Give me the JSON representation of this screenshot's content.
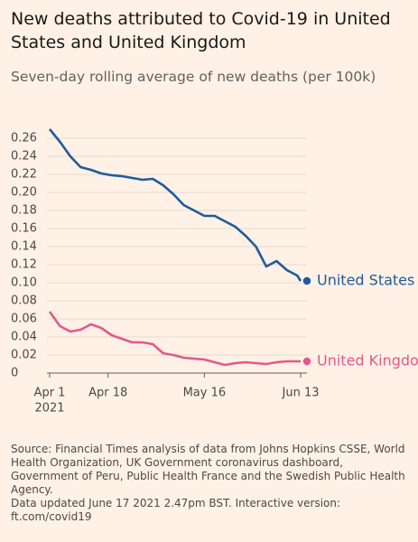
{
  "chart_data": {
    "type": "line",
    "title": "New deaths attributed to Covid-19 in United States and United Kingdom",
    "subtitle": "Seven-day rolling average of new deaths (per 100k)",
    "x": [
      "2021-04-01",
      "2021-04-04",
      "2021-04-07",
      "2021-04-10",
      "2021-04-13",
      "2021-04-16",
      "2021-04-19",
      "2021-04-22",
      "2021-04-25",
      "2021-04-28",
      "2021-05-01",
      "2021-05-04",
      "2021-05-07",
      "2021-05-10",
      "2021-05-13",
      "2021-05-16",
      "2021-05-19",
      "2021-05-22",
      "2021-05-25",
      "2021-05-28",
      "2021-05-31",
      "2021-06-03",
      "2021-06-06",
      "2021-06-09",
      "2021-06-12",
      "2021-06-13"
    ],
    "series": [
      {
        "name": "United States",
        "color": "#1f5a9e",
        "values": [
          0.27,
          0.256,
          0.24,
          0.228,
          0.225,
          0.221,
          0.219,
          0.218,
          0.216,
          0.214,
          0.215,
          0.208,
          0.198,
          0.186,
          0.18,
          0.174,
          0.174,
          0.168,
          0.162,
          0.152,
          0.14,
          0.118,
          0.124,
          0.114,
          0.108,
          0.102
        ]
      },
      {
        "name": "United Kingdom",
        "color": "#e3588f",
        "values": [
          0.068,
          0.052,
          0.046,
          0.048,
          0.054,
          0.05,
          0.042,
          0.038,
          0.034,
          0.034,
          0.032,
          0.022,
          0.02,
          0.017,
          0.016,
          0.015,
          0.012,
          0.009,
          0.011,
          0.012,
          0.011,
          0.01,
          0.012,
          0.013,
          0.013,
          0.013
        ]
      }
    ],
    "xlim": [
      "2021-04-01",
      "2021-06-13"
    ],
    "xticks": [
      {
        "value": "2021-04-01",
        "label": "Apr 1"
      },
      {
        "value": "2021-04-18",
        "label": "Apr 18"
      },
      {
        "value": "2021-05-16",
        "label": "May 16"
      },
      {
        "value": "2021-06-13",
        "label": "Jun 13"
      }
    ],
    "x_year": "2021",
    "ylim": [
      0,
      0.27
    ],
    "yticks": [
      0,
      0.02,
      0.04,
      0.06,
      0.08,
      {
        "value": 0.1,
        "label": "0.10"
      },
      0.12,
      0.14,
      0.16,
      0.18,
      {
        "value": 0.2,
        "label": "0.20"
      },
      0.22,
      0.24,
      0.26
    ],
    "grid": true,
    "source": "Source: Financial Times analysis of data from Johns Hopkins CSSE, World Health Organization, UK Government coronavirus dashboard, Government of Peru, Public Health France and the Swedish Public Health Agency.",
    "note": "Data updated June 17 2021 2.47pm BST. Interactive version: ft.com/covid19"
  }
}
